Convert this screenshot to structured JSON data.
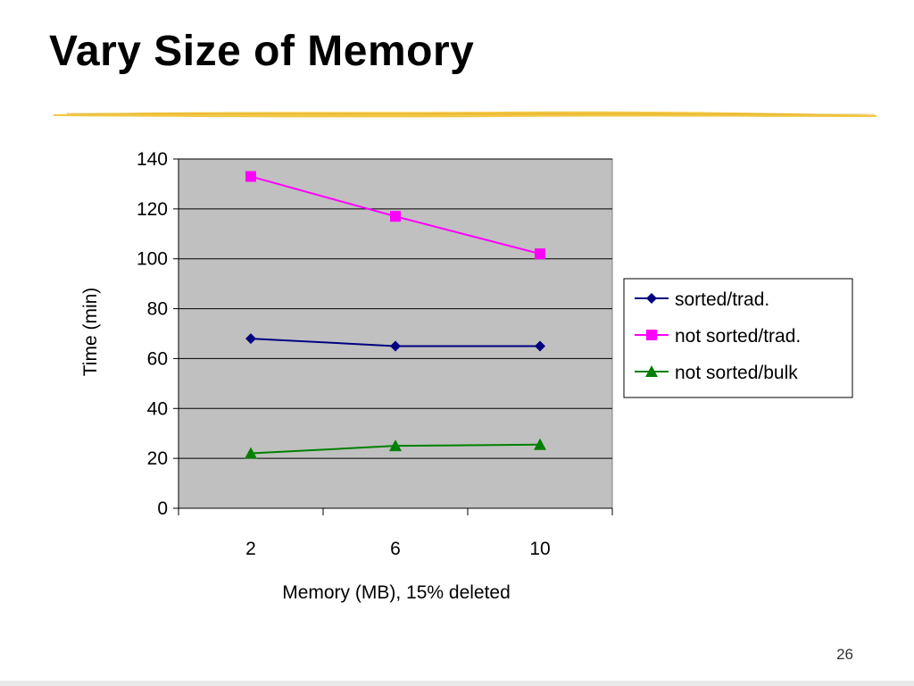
{
  "slide": {
    "title": "Vary Size of Memory",
    "page_number": "26"
  },
  "colors": {
    "title_underline": "#f2c43a",
    "plot_background": "#c0c0c0"
  },
  "chart_data": {
    "type": "line",
    "title": "",
    "xlabel": "Memory (MB), 15% deleted",
    "ylabel": "Time (min)",
    "categories": [
      "2",
      "6",
      "10"
    ],
    "ylim": [
      0,
      140
    ],
    "yticks": [
      0,
      20,
      40,
      60,
      80,
      100,
      120,
      140
    ],
    "grid": true,
    "legend_position": "right",
    "series": [
      {
        "name": "sorted/trad.",
        "values": [
          68,
          65,
          65
        ],
        "color": "#000080",
        "marker": "diamond"
      },
      {
        "name": "not sorted/trad.",
        "values": [
          133,
          117,
          102
        ],
        "color": "#ff00ff",
        "marker": "square"
      },
      {
        "name": "not sorted/bulk",
        "values": [
          22,
          25,
          25.5
        ],
        "color": "#008000",
        "marker": "triangle"
      }
    ]
  }
}
